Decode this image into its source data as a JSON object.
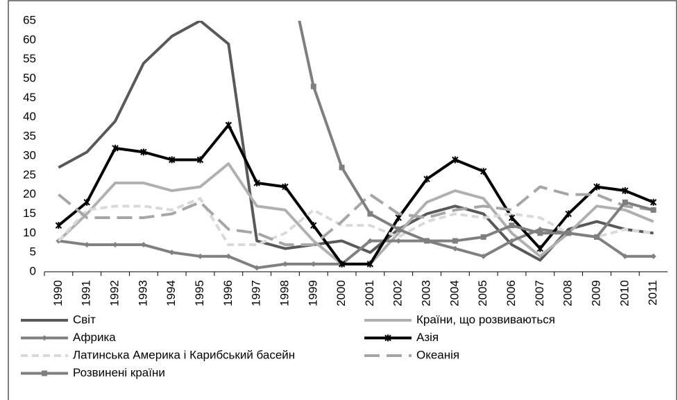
{
  "chart_data": {
    "type": "line",
    "categories": [
      "1990",
      "1991",
      "1992",
      "1993",
      "1994",
      "1995",
      "1996",
      "1997",
      "1998",
      "1999",
      "2000",
      "2001",
      "2002",
      "2003",
      "2004",
      "2005",
      "2006",
      "2007",
      "2008",
      "2009",
      "2010",
      "2011"
    ],
    "ylim": [
      0,
      65
    ],
    "yticks": [
      0,
      5,
      10,
      15,
      20,
      25,
      30,
      35,
      40,
      45,
      50,
      55,
      60,
      65
    ],
    "series": [
      {
        "name": "Світ",
        "color": "#595959",
        "dash": "solid",
        "marker": "none",
        "values": [
          27,
          31,
          39,
          54,
          61,
          65,
          59,
          8,
          6,
          7,
          8,
          5,
          11,
          15,
          17,
          15,
          7,
          3,
          11,
          13,
          11,
          10
        ]
      },
      {
        "name": "Країни, що розвиваються",
        "color": "#b0b0b0",
        "dash": "solid",
        "marker": "none",
        "values": [
          8,
          15,
          23,
          23,
          21,
          22,
          28,
          17,
          16,
          8,
          2,
          2,
          10,
          18,
          21,
          19,
          10,
          4,
          10,
          17,
          16,
          13
        ]
      },
      {
        "name": "Африка",
        "color": "#808080",
        "dash": "solid",
        "marker": "diamond",
        "values": [
          8,
          7,
          7,
          7,
          5,
          4,
          4,
          1,
          2,
          2,
          2,
          8,
          8,
          8,
          6,
          4,
          8,
          11,
          10,
          9,
          4,
          4
        ]
      },
      {
        "name": "Азія",
        "color": "#000000",
        "dash": "solid",
        "marker": "star",
        "values": [
          12,
          18,
          32,
          31,
          29,
          29,
          38,
          23,
          22,
          12,
          2,
          2,
          14,
          24,
          29,
          26,
          14,
          6,
          15,
          22,
          21,
          18
        ]
      },
      {
        "name": "Латинська Америка і Карибський басейн",
        "color": "#d9d9d9",
        "dash": "dashed",
        "marker": "none",
        "values": [
          8,
          16,
          17,
          17,
          16,
          19,
          7,
          7,
          10,
          16,
          12,
          12,
          9,
          13,
          15,
          14,
          15,
          14,
          10,
          9,
          11,
          10
        ]
      },
      {
        "name": "Океанія",
        "color": "#a6a6a6",
        "dash": "longdash",
        "marker": "none",
        "values": [
          20,
          14,
          14,
          14,
          15,
          18,
          11,
          10,
          7,
          7,
          13,
          20,
          15,
          14,
          16,
          17,
          16,
          22,
          20,
          20,
          17,
          16
        ]
      },
      {
        "name": "Розвинені країни",
        "color": "#7f7f7f",
        "dash": "solid",
        "marker": "square",
        "values": [
          null,
          null,
          null,
          null,
          null,
          null,
          null,
          null,
          82,
          48,
          27,
          15,
          11,
          8,
          8,
          9,
          12,
          10,
          10,
          9,
          18,
          16
        ]
      }
    ]
  }
}
